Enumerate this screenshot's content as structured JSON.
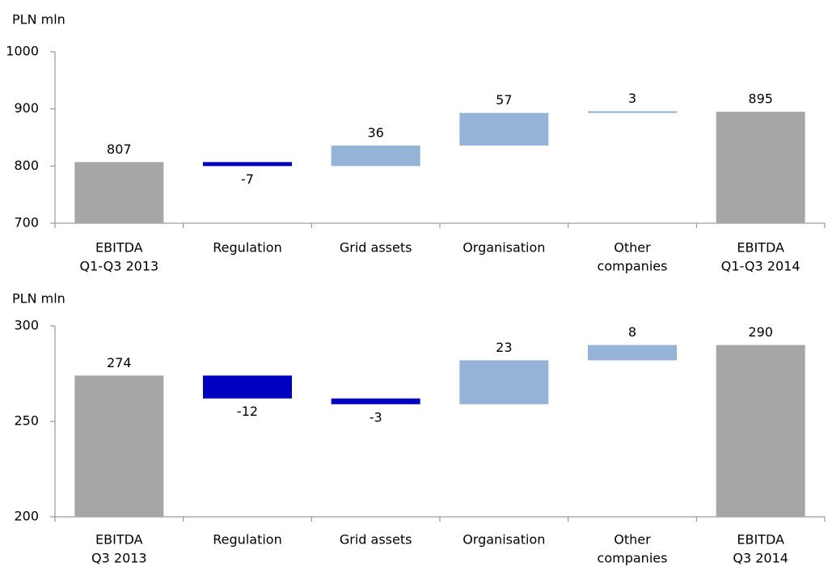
{
  "chart_data": [
    {
      "type": "waterfall",
      "y_label": "PLN mln",
      "categories": [
        [
          "EBITDA",
          "Q1-Q3 2013"
        ],
        [
          "Regulation"
        ],
        [
          "Grid assets"
        ],
        [
          "Organisation"
        ],
        [
          "Other",
          "companies"
        ],
        [
          "EBITDA",
          "Q1-Q3 2014"
        ]
      ],
      "values": [
        807,
        -7,
        36,
        57,
        3,
        895
      ],
      "ylim": [
        700,
        1000
      ],
      "yticks": [
        700,
        800,
        900,
        1000
      ],
      "total_color": "#a6a6a6",
      "increase_color": "#95b3d7",
      "decrease_color": "#0000c0"
    },
    {
      "type": "waterfall",
      "y_label": "PLN mln",
      "categories": [
        [
          "EBITDA",
          "Q3 2013"
        ],
        [
          "Regulation"
        ],
        [
          "Grid assets"
        ],
        [
          "Organisation"
        ],
        [
          "Other",
          "companies"
        ],
        [
          "EBITDA",
          "Q3 2014"
        ]
      ],
      "values": [
        274,
        -12,
        -3,
        23,
        8,
        290
      ],
      "ylim": [
        200,
        300
      ],
      "yticks": [
        200,
        250,
        300
      ],
      "total_color": "#a6a6a6",
      "increase_color": "#95b3d7",
      "decrease_color": "#0000c0"
    }
  ]
}
